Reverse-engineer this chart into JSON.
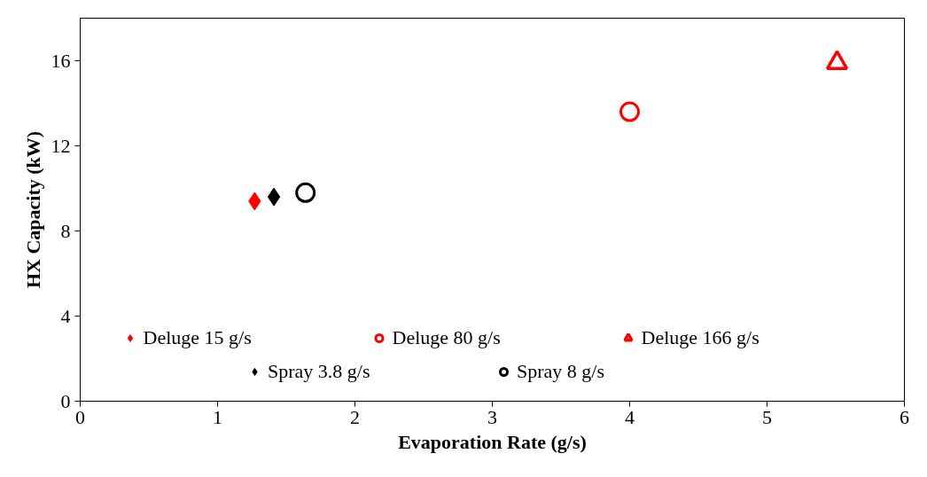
{
  "chart_data": {
    "type": "scatter",
    "xlabel": "Evaporation Rate (g/s)",
    "ylabel": "HX Capacity (kW)",
    "xlim": [
      0,
      6
    ],
    "xticks": [
      0,
      1,
      2,
      3,
      4,
      5,
      6
    ],
    "ylim": [
      0,
      18
    ],
    "yticks": [
      0,
      4,
      8,
      12,
      16
    ],
    "grid": false,
    "legend": "bottom",
    "series": [
      {
        "name": "Deluge 15 g/s",
        "color": "#ff0000",
        "marker": "diamond",
        "x": [
          1.27
        ],
        "values": [
          9.4
        ]
      },
      {
        "name": "Deluge 80 g/s",
        "color": "#ff0000",
        "marker": "circle",
        "x": [
          4.0
        ],
        "values": [
          13.6
        ]
      },
      {
        "name": "Deluge 166 g/s",
        "color": "#ff0000",
        "marker": "triangle",
        "x": [
          5.51
        ],
        "values": [
          15.9
        ]
      },
      {
        "name": "Spray 3.8 g/s",
        "color": "#000000",
        "marker": "diamond",
        "x": [
          1.41
        ],
        "values": [
          9.6
        ]
      },
      {
        "name": "Spray 8 g/s",
        "color": "#000000",
        "marker": "circle",
        "x": [
          1.64
        ],
        "values": [
          9.8
        ]
      }
    ]
  }
}
